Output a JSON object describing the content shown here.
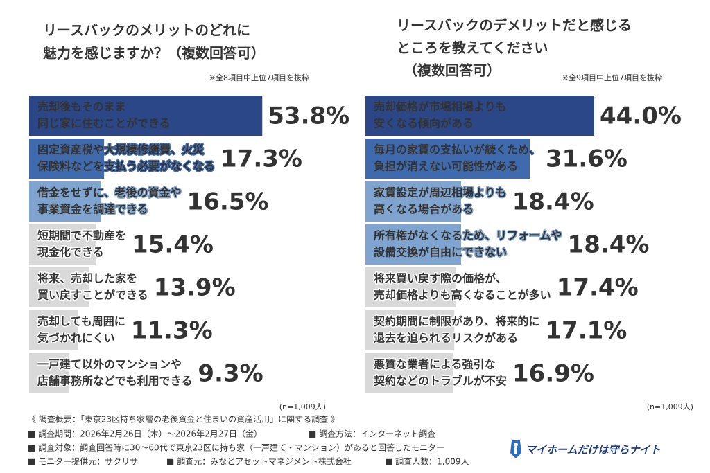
{
  "chart_data": [
    {
      "type": "bar",
      "orientation": "horizontal",
      "title": [
        "リースバックのメリットのどれに",
        "魅力を感じますか？（複数回答可）"
      ],
      "note": "※全8項目中上位7項目を抜粋",
      "categories": [
        [
          "売却後もそのまま",
          "同じ家に住むことができる"
        ],
        [
          "固定資産税や大規模修繕費、火災",
          "保険料などを支払う必要がなくなる"
        ],
        [
          "借金をせずに、老後の資金や",
          "事業資金を調達できる"
        ],
        [
          "短期間で不動産を",
          "現金化できる"
        ],
        [
          "将来、売却した家を",
          "買い戻すことができる"
        ],
        [
          "売却しても周囲に",
          "気づかれにくい"
        ],
        [
          "一戸建て以外のマンションや",
          "店舗事務所などでも利用できる"
        ]
      ],
      "values": [
        53.8,
        17.3,
        16.5,
        15.4,
        13.9,
        11.3,
        9.3
      ],
      "value_labels": [
        "53.8%",
        "17.3%",
        "16.5%",
        "15.4%",
        "13.9%",
        "11.3%",
        "9.3%"
      ],
      "colors": [
        "#2b4787",
        "#3f6aad",
        "#7fa4cf",
        "#d9d9d9",
        "#d9d9d9",
        "#d9d9d9",
        "#d9d9d9"
      ],
      "label_colors": [
        "#2b4787",
        "#3f6aad",
        "#7fa4cf",
        "#404040",
        "#404040",
        "#404040",
        "#404040"
      ],
      "text_colors": [
        "#ffffff",
        "#ffffff",
        "#ffffff",
        "#333333",
        "#333333",
        "#333333",
        "#333333"
      ],
      "xlim": [
        0,
        60
      ],
      "sample_size": "(n=1,009人)"
    },
    {
      "type": "bar",
      "orientation": "horizontal",
      "title": [
        "リースバックのデメリットだと感じる",
        "ところを教えてください",
        "（複数回答可）"
      ],
      "note": "※全9項目中上位7項目を抜粋",
      "categories": [
        [
          "売却価格が市場相場よりも",
          "安くなる傾向がある"
        ],
        [
          "毎月の家賃の支払いが続くため、",
          "負担が消えない可能性がある"
        ],
        [
          "家賃設定が周辺相場よりも",
          "高くなる場合がある"
        ],
        [
          "所有権がなくなるため、リフォームや",
          "設備交換が自由にできない"
        ],
        [
          "将来買い戻す際の価格が、",
          "売却価格よりも高くなることが多い"
        ],
        [
          "契約期間に制限があり、将来的に",
          "退去を迫られるリスクがある"
        ],
        [
          "悪質な業者による強引な",
          "契約などのトラブルが不安"
        ]
      ],
      "values": [
        44.0,
        31.6,
        18.4,
        18.4,
        17.4,
        17.1,
        16.9
      ],
      "value_labels": [
        "44.0%",
        "31.6%",
        "18.4%",
        "18.4%",
        "17.4%",
        "17.1%",
        "16.9%"
      ],
      "colors": [
        "#2b4787",
        "#3f6aad",
        "#7fa4cf",
        "#7fa4cf",
        "#d9d9d9",
        "#d9d9d9",
        "#d9d9d9"
      ],
      "label_colors": [
        "#2b4787",
        "#3f6aad",
        "#7fa4cf",
        "#7fa4cf",
        "#404040",
        "#404040",
        "#404040"
      ],
      "text_colors": [
        "#ffffff",
        "#ffffff",
        "#ffffff",
        "#ffffff",
        "#333333",
        "#333333",
        "#333333"
      ],
      "xlim": [
        0,
        60
      ],
      "sample_size": "(n=1,009人)"
    }
  ],
  "footer": {
    "heading": "《 調査概要：「東京23区持ち家層の老後資金と住まいの資産活用」に関する調査 》",
    "period": "■ 調査期間：2026年2月26日（木）～2026年2月27日（金）",
    "method": "■ 調査方法：インターネット調査",
    "target": "■ 調査対象：調査回答時に30～60代で東京23区に持ち家（一戸建て・マンション）があると回答したモニター",
    "provider": "■ モニター提供元：サクリサ",
    "source": "■ 調査元：みなとアセットマネジメント株式会社",
    "count": "■ 調査人数：1,009人"
  },
  "logo": "マイホームだけは守らナイト"
}
